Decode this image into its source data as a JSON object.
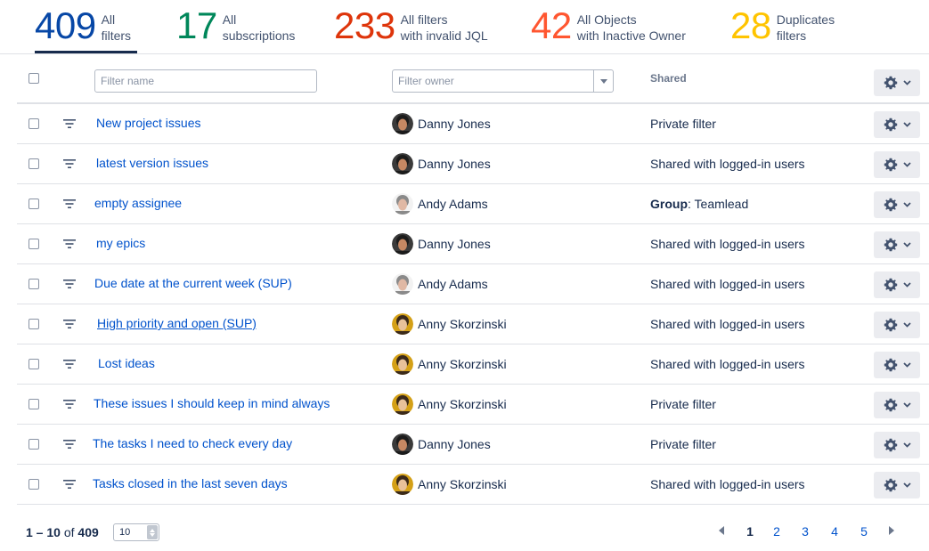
{
  "stats": [
    {
      "value": "409",
      "label1": "All",
      "label2": "filters",
      "color": "#0747a6"
    },
    {
      "value": "17",
      "label1": "All",
      "label2": "subscriptions",
      "color": "#00875a"
    },
    {
      "value": "233",
      "label1": "All filters",
      "label2": "with invalid JQL",
      "color": "#de350b"
    },
    {
      "value": "42",
      "label1": "All Objects",
      "label2": "with Inactive Owner",
      "color": "#ff5630"
    },
    {
      "value": "28",
      "label1": "Duplicates",
      "label2": "filters",
      "color": "#ffc400"
    }
  ],
  "table": {
    "filter_name_placeholder": "Filter name",
    "filter_owner_placeholder": "Filter owner",
    "shared_header": "Shared",
    "rows": [
      {
        "name": "New project issues",
        "owner": "Danny Jones",
        "owner_avatar": "avatar-danny",
        "shared": "Private filter",
        "shared_prefix": ""
      },
      {
        "name": "latest version issues",
        "owner": "Danny Jones",
        "owner_avatar": "avatar-danny",
        "shared": "Shared with logged-in users",
        "shared_prefix": ""
      },
      {
        "name": "empty assignee",
        "owner": "Andy Adams",
        "owner_avatar": "avatar-andy",
        "shared": ": Teamlead",
        "shared_prefix": "Group"
      },
      {
        "name": "my epics",
        "owner": "Danny Jones",
        "owner_avatar": "avatar-danny",
        "shared": "Shared with logged-in users",
        "shared_prefix": ""
      },
      {
        "name": "Due date at the current week (SUP)",
        "owner": "Andy Adams",
        "owner_avatar": "avatar-andy",
        "shared": "Shared with logged-in users",
        "shared_prefix": ""
      },
      {
        "name": "High priority and open (SUP)",
        "owner": "Anny Skorzinski",
        "owner_avatar": "avatar-anny",
        "shared": "Shared with logged-in users",
        "shared_prefix": ""
      },
      {
        "name": "Lost ideas",
        "owner": "Anny Skorzinski",
        "owner_avatar": "avatar-anny",
        "shared": "Shared with logged-in users",
        "shared_prefix": ""
      },
      {
        "name": "These issues I should keep in mind always",
        "owner": "Anny Skorzinski",
        "owner_avatar": "avatar-anny",
        "shared": "Private filter",
        "shared_prefix": ""
      },
      {
        "name": "The tasks I need to check every day",
        "owner": "Danny Jones",
        "owner_avatar": "avatar-danny",
        "shared": "Private filter",
        "shared_prefix": ""
      },
      {
        "name": "Tasks closed in the last seven days",
        "owner": "Anny Skorzinski",
        "owner_avatar": "avatar-anny",
        "shared": "Shared with logged-in users",
        "shared_prefix": ""
      }
    ]
  },
  "footer": {
    "range_start": "1",
    "range_sep": " – ",
    "range_end": "10",
    "range_of": " of ",
    "total": "409",
    "per_page": "10",
    "pages": [
      "1",
      "2",
      "3",
      "4",
      "5"
    ],
    "current_page": "1"
  },
  "icons": {
    "filter": "filter-lines-icon",
    "gear": "gear-icon",
    "chevron": "chevron-down-icon",
    "prev": "arrow-left-icon",
    "next": "arrow-right-icon"
  }
}
